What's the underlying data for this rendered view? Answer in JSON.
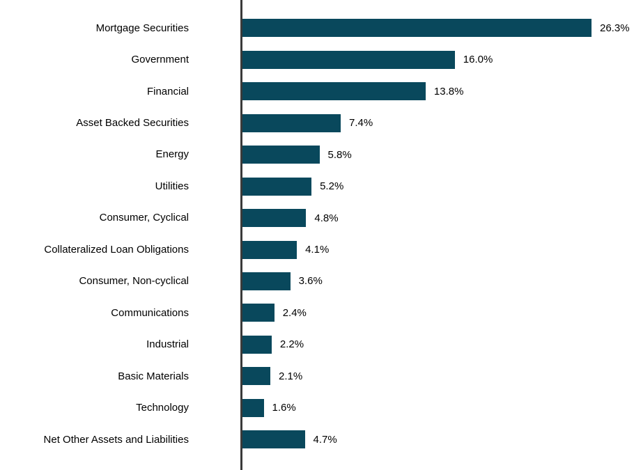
{
  "chart_data": {
    "type": "bar",
    "orientation": "horizontal",
    "title": "",
    "xlabel": "",
    "ylabel": "",
    "grid": false,
    "legend_position": "none",
    "xlim": [
      0,
      29.5
    ],
    "bar_color": "#09485c",
    "axis_line_color": "#3a3a3a",
    "text_color": "#000000",
    "categories": [
      "Mortgage Securities",
      "Government",
      "Financial",
      "Asset Backed Securities",
      "Energy",
      "Utilities",
      "Consumer, Cyclical",
      "Collateralized Loan Obligations",
      "Consumer, Non-cyclical",
      "Communications",
      "Industrial",
      "Basic Materials",
      "Technology",
      "Net Other Assets and Liabilities"
    ],
    "values": [
      26.3,
      16.0,
      13.8,
      7.4,
      5.8,
      5.2,
      4.8,
      4.1,
      3.6,
      2.4,
      2.2,
      2.1,
      1.6,
      4.7
    ],
    "value_labels": [
      "26.3%",
      "16.0%",
      "13.8%",
      "7.4%",
      "5.8%",
      "5.2%",
      "4.8%",
      "4.1%",
      "3.6%",
      "2.4%",
      "2.2%",
      "2.1%",
      "1.6%",
      "4.7%"
    ]
  }
}
